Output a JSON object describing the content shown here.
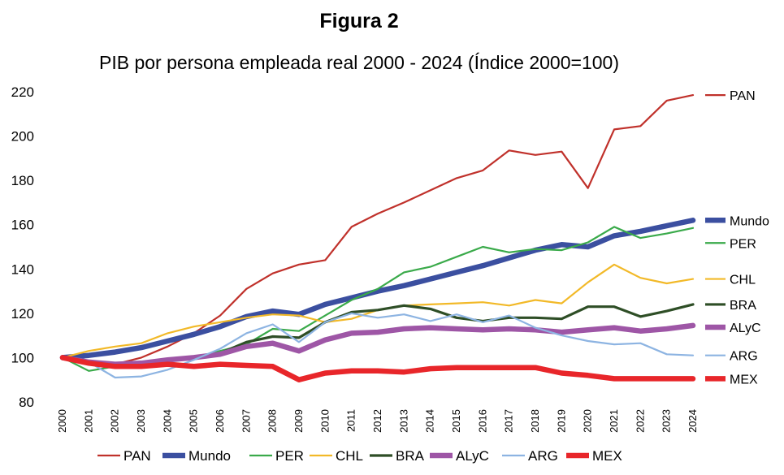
{
  "figure_label": "Figura 2",
  "chart_data": {
    "type": "line",
    "title": "PIB por persona empleada real 2000 - 2024 (Índice 2000=100)",
    "xlabel": "",
    "ylabel": "",
    "ylim": [
      80,
      220
    ],
    "yticks": [
      "80",
      "100",
      "120",
      "140",
      "160",
      "180",
      "200",
      "220"
    ],
    "grid": false,
    "legend": "bottom",
    "x": [
      "2000",
      "2001",
      "2002",
      "2003",
      "2004",
      "2005",
      "2006",
      "2007",
      "2008",
      "2009",
      "2010",
      "2011",
      "2012",
      "2013",
      "2014",
      "2015",
      "2016",
      "2017",
      "2018",
      "2019",
      "2020",
      "2021",
      "2022",
      "2023",
      "2024"
    ],
    "series": [
      {
        "name": "PAN",
        "end_label": "PAN",
        "color": "#C0312B",
        "weight": "thin",
        "values": [
          100,
          98,
          97,
          100,
          105,
          111,
          119,
          131,
          138,
          142,
          144,
          159,
          165,
          170,
          175.5,
          181,
          184.5,
          193.5,
          191.5,
          193,
          176.5,
          203,
          204.5,
          216,
          218.5
        ]
      },
      {
        "name": "Mundo",
        "end_label": "Mundo",
        "color": "#3B4FA0",
        "weight": "heavy",
        "values": [
          100,
          101,
          102.5,
          104.5,
          107.5,
          110.5,
          114,
          118.5,
          121,
          119.5,
          124,
          127,
          130,
          132.5,
          135.5,
          138.5,
          141.5,
          145,
          148.5,
          151,
          150,
          155,
          157,
          159.5,
          162
        ]
      },
      {
        "name": "PER",
        "end_label": "PER",
        "color": "#3AAA4A",
        "weight": "thin",
        "values": [
          100,
          94,
          96,
          98,
          99,
          100,
          103,
          106,
          113,
          112,
          119,
          126,
          131,
          138.5,
          141,
          145.5,
          150,
          147.5,
          149,
          148.5,
          152,
          159,
          154,
          156,
          158.5
        ]
      },
      {
        "name": "CHL",
        "end_label": "CHL",
        "color": "#F2B928",
        "weight": "thin",
        "values": [
          100,
          103,
          105,
          106.5,
          111,
          114,
          116,
          118,
          119.5,
          119,
          116,
          117.5,
          121.5,
          123.5,
          124,
          124.5,
          125,
          123.5,
          126,
          124.5,
          134,
          142,
          136,
          133.5,
          135.5
        ]
      },
      {
        "name": "BRA",
        "end_label": "BRA",
        "color": "#2E4E26",
        "weight": "medium",
        "values": [
          100,
          98,
          97,
          97.5,
          98.5,
          100,
          102,
          107,
          109.5,
          109,
          116,
          120.5,
          121.5,
          123.5,
          122,
          118,
          116.5,
          118,
          118,
          117.5,
          123,
          123,
          118.5,
          121,
          124
        ]
      },
      {
        "name": "ALyC",
        "end_label": "ALyC",
        "color": "#9E56A6",
        "weight": "heavy",
        "values": [
          100,
          98,
          97,
          97.5,
          99,
          100,
          101.5,
          105,
          106.5,
          103,
          108,
          111,
          111.5,
          113,
          113.5,
          113,
          112.5,
          113,
          112.5,
          111.5,
          112.5,
          113.5,
          112,
          113,
          114.5
        ]
      },
      {
        "name": "ARG",
        "end_label": "ARG",
        "color": "#8DB4E2",
        "weight": "thin",
        "values": [
          100,
          98,
          91,
          91.5,
          94.5,
          99,
          104,
          111,
          115,
          107,
          116,
          120,
          118,
          119.5,
          116.5,
          119.5,
          116,
          119,
          113.5,
          110,
          107.5,
          106,
          106.5,
          101.5,
          101
        ]
      },
      {
        "name": "MEX",
        "end_label": "MEX",
        "color": "#E8262A",
        "weight": "heavy",
        "values": [
          100,
          97.5,
          96,
          96,
          97,
          96,
          97,
          96.5,
          96,
          90,
          93,
          94,
          94,
          93.5,
          95,
          95.5,
          95.5,
          95.5,
          95.5,
          93,
          92,
          90.5,
          90.5,
          90.5,
          90.5
        ]
      }
    ]
  }
}
